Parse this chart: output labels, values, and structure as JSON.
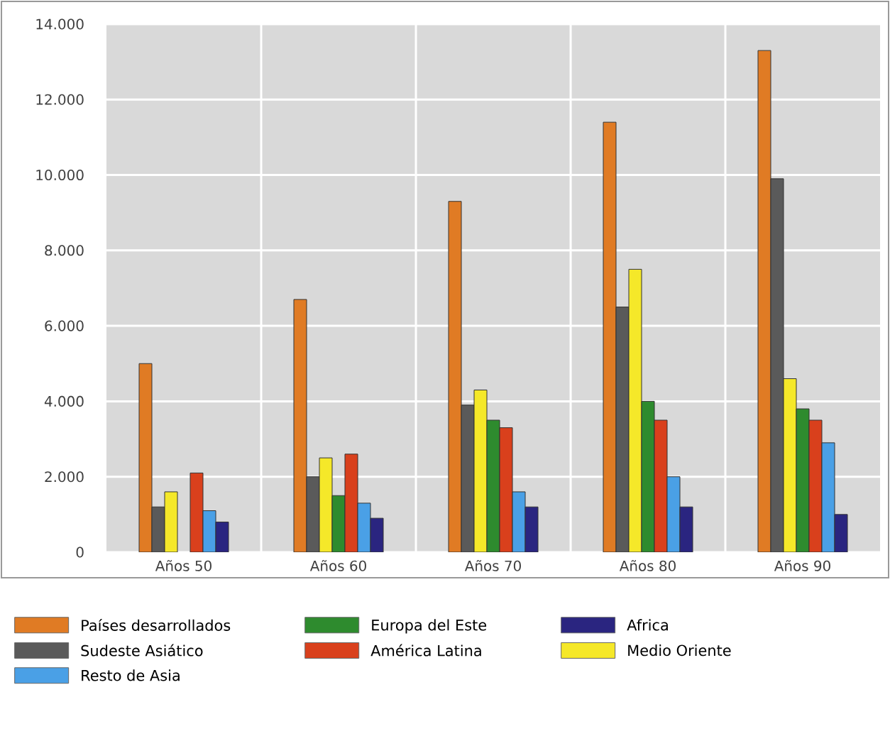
{
  "chart_data": {
    "type": "bar",
    "categories": [
      "Años 50",
      "Años 60",
      "Años 70",
      "Años 80",
      "Años 90"
    ],
    "series": [
      {
        "name": "Países desarrollados",
        "color": "#e07b24",
        "values": [
          5000,
          6700,
          9300,
          11400,
          13300
        ]
      },
      {
        "name": "Sudeste Asiático",
        "color": "#5a5a5a",
        "values": [
          1200,
          2000,
          3900,
          6500,
          9900
        ]
      },
      {
        "name": "Medio Oriente",
        "color": "#f5e829",
        "values": [
          1600,
          2500,
          4300,
          7500,
          4600
        ]
      },
      {
        "name": "Europa del Este",
        "color": "#2e8b2e",
        "values": [
          null,
          1500,
          3500,
          4000,
          3800
        ]
      },
      {
        "name": "América Latina",
        "color": "#d9401c",
        "values": [
          2100,
          2600,
          3300,
          3500,
          3500
        ]
      },
      {
        "name": "Resto de Asia",
        "color": "#4aa0e6",
        "values": [
          1100,
          1300,
          1600,
          2000,
          2900
        ]
      },
      {
        "name": "Africa",
        "color": "#2a2580",
        "values": [
          800,
          900,
          1200,
          1200,
          1000
        ]
      }
    ],
    "ylim": [
      0,
      14000
    ],
    "yticks": [
      {
        "value": 0,
        "label": "0"
      },
      {
        "value": 2000,
        "label": "2.000"
      },
      {
        "value": 4000,
        "label": "4.000"
      },
      {
        "value": 6000,
        "label": "6.000"
      },
      {
        "value": 8000,
        "label": "8.000"
      },
      {
        "value": 10000,
        "label": "10.000"
      },
      {
        "value": 12000,
        "label": "12.000"
      },
      {
        "value": 14000,
        "label": "14.000"
      }
    ],
    "grid": true,
    "legend": "bottom"
  }
}
